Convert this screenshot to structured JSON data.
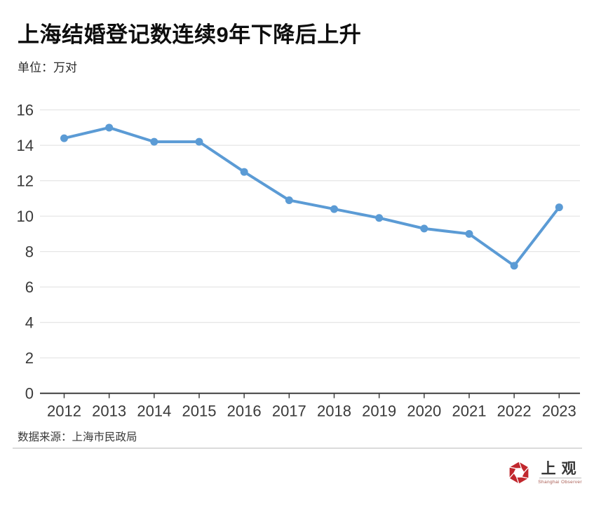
{
  "header": {
    "title": "上海结婚登记数连续9年下降后上升",
    "unit_label": "单位：万对"
  },
  "chart_data": {
    "type": "line",
    "title": "上海结婚登记数连续9年下降后上升",
    "unit": "万对",
    "categories": [
      "2012",
      "2013",
      "2014",
      "2015",
      "2016",
      "2017",
      "2018",
      "2019",
      "2020",
      "2021",
      "2022",
      "2023"
    ],
    "values": [
      14.4,
      15.0,
      14.2,
      14.2,
      12.5,
      10.9,
      10.4,
      9.9,
      9.3,
      9.0,
      7.2,
      10.5
    ],
    "ylim": [
      0,
      16
    ],
    "ytick_step": 2,
    "grid": true,
    "legend_position": "none",
    "line_color": "#5b9bd5",
    "grid_color": "#e3e3e3",
    "axis_color": "#3f3f3f",
    "tick_label_color": "#3a3a3a"
  },
  "footer": {
    "source": "数据来源：上海市民政局"
  },
  "logo": {
    "name": "上观",
    "subtext": "Shanghai Observer",
    "brand_red": "#c1272d"
  }
}
